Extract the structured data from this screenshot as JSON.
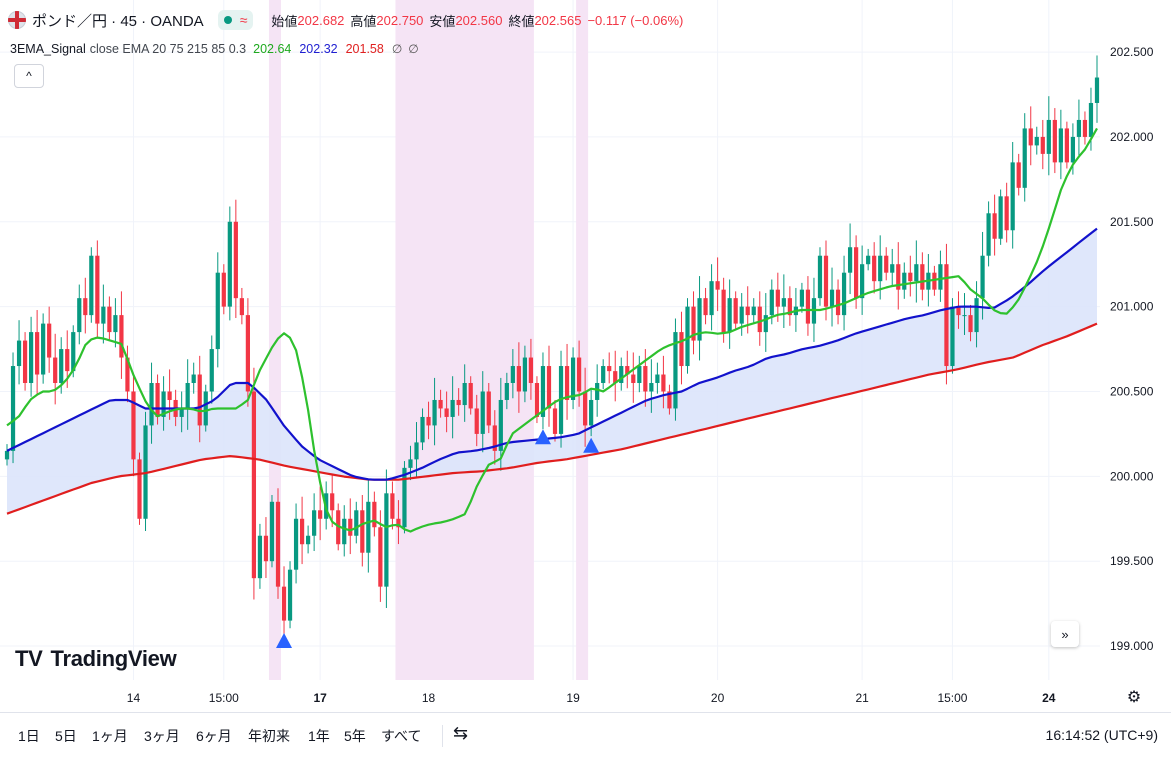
{
  "header": {
    "symbol": "ポンド／円 · 45 · OANDA",
    "status_icon": "market-open-dot",
    "wave_icon": "≈",
    "ohlc": [
      {
        "label": "始値",
        "value": "202.682"
      },
      {
        "label": "高値",
        "value": "202.750"
      },
      {
        "label": "安値",
        "value": "202.560"
      },
      {
        "label": "終値",
        "value": "202.565"
      }
    ],
    "change": "−0.117 (−0.06%)"
  },
  "indicator": {
    "name": "3EMA_Signal",
    "params": "close EMA 20 75 215 85 0.3",
    "values": [
      "202.64",
      "202.32",
      "201.58"
    ],
    "icons": [
      "∅",
      "∅"
    ]
  },
  "buttons": {
    "collapse": "^",
    "scroll_right": "»",
    "settings": "⚙"
  },
  "logo": {
    "mark": "TV",
    "text": "TradingView"
  },
  "toolbar": {
    "ranges": [
      "1日",
      "5日",
      "1ヶ月",
      "3ヶ月",
      "6ヶ月",
      "年初来",
      "1年",
      "5年",
      "すべて"
    ],
    "compare_icon": "⇆",
    "clock": "16:14:52 (UTC+9)"
  },
  "colors": {
    "up": "#089981",
    "down": "#f23645",
    "ema_fast": "#2ec12e",
    "ema_mid": "#1212cc",
    "ema_slow": "#e01e1e",
    "fill": "#dbe4fb",
    "session": "#f5e4f5",
    "signal": "#2962ff"
  },
  "chart_data": {
    "type": "candlestick",
    "x_ticks": [
      {
        "i": 21,
        "label": "14"
      },
      {
        "i": 36,
        "label": "15:00"
      },
      {
        "i": 52,
        "label": "17"
      },
      {
        "i": 70,
        "label": "18"
      },
      {
        "i": 94,
        "label": "19"
      },
      {
        "i": 118,
        "label": "20"
      },
      {
        "i": 142,
        "label": "21"
      },
      {
        "i": 157,
        "label": "15:00"
      },
      {
        "i": 173,
        "label": "24"
      }
    ],
    "y_ticks": [
      199.0,
      199.5,
      200.0,
      200.5,
      201.0,
      201.5,
      202.0,
      202.5
    ],
    "ylim": [
      198.8,
      202.63
    ],
    "sessions": [
      [
        44,
        45
      ],
      [
        65,
        87
      ],
      [
        95,
        96
      ]
    ],
    "signals": [
      46,
      89,
      97
    ],
    "close": [
      200.15,
      200.65,
      200.8,
      200.55,
      200.85,
      200.6,
      200.9,
      200.7,
      200.55,
      200.75,
      200.62,
      200.85,
      201.05,
      200.95,
      201.3,
      200.9,
      201.0,
      200.85,
      200.95,
      200.7,
      200.5,
      200.1,
      199.75,
      200.3,
      200.55,
      200.35,
      200.5,
      200.45,
      200.35,
      200.4,
      200.55,
      200.6,
      200.3,
      200.5,
      200.75,
      201.2,
      201.0,
      201.5,
      201.05,
      200.95,
      200.5,
      199.4,
      199.65,
      199.5,
      199.85,
      199.35,
      199.15,
      199.45,
      199.75,
      199.6,
      199.65,
      199.8,
      199.75,
      199.9,
      199.8,
      199.6,
      199.75,
      199.65,
      199.8,
      199.55,
      199.85,
      199.7,
      199.35,
      199.9,
      199.75,
      199.7,
      200.05,
      200.1,
      200.2,
      200.35,
      200.3,
      200.45,
      200.4,
      200.35,
      200.45,
      200.42,
      200.55,
      200.4,
      200.25,
      200.5,
      200.3,
      200.15,
      200.45,
      200.55,
      200.65,
      200.5,
      200.7,
      200.55,
      200.35,
      200.65,
      200.4,
      200.25,
      200.65,
      200.45,
      200.7,
      200.5,
      200.3,
      200.45,
      200.55,
      200.65,
      200.62,
      200.55,
      200.65,
      200.6,
      200.55,
      200.65,
      200.5,
      200.55,
      200.6,
      200.5,
      200.4,
      200.85,
      200.65,
      201.0,
      200.8,
      201.05,
      200.95,
      201.15,
      201.1,
      200.85,
      201.05,
      200.9,
      201.0,
      200.95,
      201.0,
      200.85,
      200.95,
      201.1,
      201.0,
      201.05,
      200.95,
      201.0,
      201.1,
      200.9,
      201.05,
      201.3,
      201.0,
      201.1,
      200.95,
      201.2,
      201.35,
      201.05,
      201.25,
      201.3,
      201.15,
      201.3,
      201.2,
      201.25,
      201.1,
      201.2,
      201.15,
      201.25,
      201.1,
      201.2,
      201.1,
      201.25,
      200.65,
      201.0,
      200.95,
      200.95,
      200.85,
      201.05,
      201.3,
      201.55,
      201.4,
      201.65,
      201.45,
      201.85,
      201.7,
      202.05,
      201.95,
      202.0,
      201.9,
      202.1,
      201.85,
      202.05,
      201.85,
      202.0,
      202.1,
      202.0,
      202.2,
      202.35
    ],
    "ema_fast": [
      200.3,
      200.35,
      200.45,
      200.5,
      200.5,
      200.55,
      200.65,
      200.8,
      200.82,
      200.8,
      200.78,
      200.6,
      200.45,
      200.35,
      200.38,
      200.4,
      200.4,
      200.38,
      200.4,
      200.4,
      200.4,
      200.45,
      200.62,
      200.75,
      200.85,
      200.8,
      200.5,
      200.05,
      199.75,
      199.7,
      199.68,
      199.72,
      199.74,
      199.7,
      199.72,
      199.67,
      199.7,
      199.72,
      199.73,
      199.75,
      199.78,
      199.95,
      200.07,
      200.1,
      200.25,
      200.3,
      200.35,
      200.4,
      200.45,
      200.47,
      200.48,
      200.52,
      200.5,
      200.55,
      200.6,
      200.65,
      200.7,
      200.75,
      200.78,
      200.8,
      200.84,
      200.85,
      200.84,
      200.85,
      200.88,
      200.9,
      200.92,
      200.95,
      200.96,
      200.98,
      200.98,
      200.98,
      201.0,
      201.02,
      201.05,
      201.08,
      201.1,
      201.12,
      201.13,
      201.14,
      201.15,
      201.16,
      201.17,
      201.18,
      201.1,
      201.05,
      200.98,
      200.95,
      201.02,
      201.15,
      201.3,
      201.5,
      201.72,
      201.85,
      201.93,
      202.05
    ],
    "ema_mid": [
      200.15,
      200.2,
      200.25,
      200.3,
      200.35,
      200.4,
      200.45,
      200.45,
      200.4,
      200.4,
      200.4,
      200.4,
      200.45,
      200.55,
      200.55,
      200.45,
      200.3,
      200.18,
      200.1,
      200.05,
      200.0,
      199.98,
      199.98,
      200.01,
      200.05,
      200.1,
      200.14,
      200.15,
      200.17,
      200.2,
      200.21,
      200.22,
      200.23,
      200.25,
      200.3,
      200.35,
      200.4,
      200.45,
      200.48,
      200.5,
      200.55,
      200.58,
      200.62,
      200.65,
      200.7,
      200.72,
      200.75,
      200.77,
      200.8,
      200.84,
      200.87,
      200.9,
      200.93,
      200.95,
      200.98,
      201.0,
      201.0,
      200.99,
      201.05,
      201.13,
      201.22,
      201.3,
      201.38,
      201.46
    ],
    "ema_slow": [
      199.78,
      199.84,
      199.9,
      199.96,
      200.0,
      200.02,
      200.06,
      200.1,
      200.12,
      200.1,
      200.06,
      200.03,
      200.0,
      199.98,
      199.98,
      200.0,
      200.02,
      200.03,
      200.05,
      200.08,
      200.1,
      200.13,
      200.16,
      200.2,
      200.24,
      200.28,
      200.32,
      200.36,
      200.4,
      200.44,
      200.48,
      200.52,
      200.56,
      200.6,
      200.63,
      200.67,
      200.7,
      200.77,
      200.83,
      200.9
    ]
  }
}
